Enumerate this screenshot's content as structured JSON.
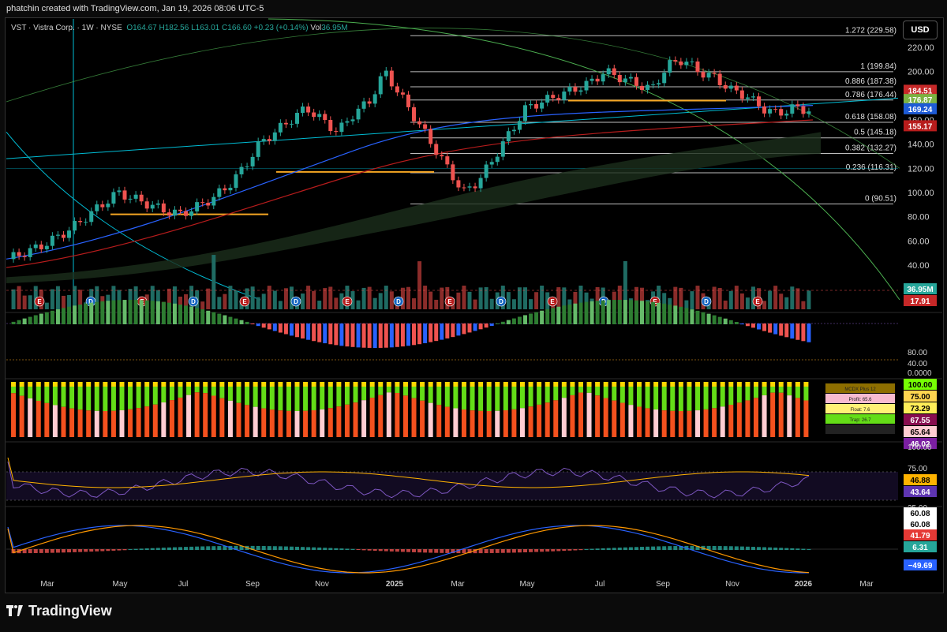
{
  "header": {
    "created_text": "phatchin created with TradingView.com, Jan 19, 2026 08:06 UTC-5"
  },
  "symbol_bar": {
    "name": "VST · Vistra Corp. · 1W · NYSE",
    "open": "O164.67",
    "high": "H182.56",
    "low": "L163.01",
    "close": "C166.60",
    "change": "+0.23 (+0.14%)",
    "volume_label": "Vol",
    "volume_value": "36.95M"
  },
  "currency_button": "USD",
  "footer": {
    "brand": "TradingView"
  },
  "colors": {
    "up": "#26a69a",
    "down": "#ef5350",
    "fib_line": "#bdbdbd",
    "orange": "#f5a623",
    "blue_ma": "#2962ff",
    "red_ma": "#b71c1c",
    "cyan": "#00bcd4",
    "green_line": "#4caf50",
    "purple": "#7e57c2"
  },
  "chart_data": {
    "type": "candlestick",
    "interval": "1W",
    "symbol": "VST",
    "price_axis": [
      "220.00",
      "200.00",
      "180.00",
      "160.00",
      "140.00",
      "120.00",
      "100.00",
      "80.00",
      "60.00",
      "40.00"
    ],
    "time_axis": [
      "Mar",
      "May",
      "Jul",
      "Sep",
      "Nov",
      "2025",
      "Mar",
      "May",
      "Jul",
      "Sep",
      "Nov",
      "2026",
      "Mar"
    ],
    "fib_levels": [
      {
        "label": "1.272 (229.58)",
        "value": 229.58
      },
      {
        "label": "1 (199.84)",
        "value": 199.84
      },
      {
        "label": "0.886 (187.38)",
        "value": 187.38
      },
      {
        "label": "0.786 (176.44)",
        "value": 176.44
      },
      {
        "label": "0.618 (158.08)",
        "value": 158.08
      },
      {
        "label": "0.5 (145.18)",
        "value": 145.18
      },
      {
        "label": "0.382 (132.27)",
        "value": 132.27
      },
      {
        "label": "0.236 (116.31)",
        "value": 116.31
      },
      {
        "label": "0 (90.51)",
        "value": 90.51
      }
    ],
    "price_badges": [
      {
        "text": "184.51",
        "value": 184.51,
        "color": "#c62828"
      },
      {
        "text": "176.87",
        "value": 176.87,
        "color": "#7cb342"
      },
      {
        "text": "169.24",
        "value": 169.24,
        "color": "#1e5bd6"
      },
      {
        "text": "155.17",
        "value": 155.17,
        "color": "#b71c1c"
      }
    ],
    "volume_badges": [
      {
        "text": "36.95M",
        "color": "#26a69a"
      },
      {
        "text": "17.91",
        "color": "#c62828"
      }
    ],
    "momentum_axis": [
      "80.00",
      "40.00",
      "0.0000"
    ],
    "breadth_badges": [
      {
        "text": "100.00",
        "color": "#76ff03"
      },
      {
        "text": "75.00",
        "color": "#ffd54f"
      },
      {
        "text": "73.29",
        "color": "#ffee58"
      },
      {
        "text": "67.55",
        "color": "#880e4f"
      },
      {
        "text": "65.64",
        "color": "#ffcdd2"
      },
      {
        "text": "46.02",
        "color": "#7b1fa2"
      }
    ],
    "breadth_legend": [
      "MCDX Plus 12",
      "Profit: 65.6",
      "Float: 7.6",
      "Trap: 26.7",
      "Neutral"
    ],
    "rsi_axis": [
      "100.00",
      "75.00",
      "25.00"
    ],
    "rsi_badges": [
      {
        "text": "46.88",
        "color": "#ffb300"
      },
      {
        "text": "43.64",
        "color": "#5e35b1"
      }
    ],
    "macd_badges": [
      {
        "text": "60.08",
        "color": "#ffffff"
      },
      {
        "text": "60.08",
        "color": "#ffffff"
      },
      {
        "text": "41.79",
        "color": "#e53935"
      },
      {
        "text": "6.31",
        "color": "#26a69a"
      },
      {
        "text": "−49.69",
        "color": "#2962ff"
      }
    ],
    "events": [
      "E",
      "D",
      "E",
      "D",
      "E",
      "D",
      "E",
      "D",
      "E",
      "D",
      "E",
      "D",
      "E",
      "D",
      "E"
    ]
  }
}
